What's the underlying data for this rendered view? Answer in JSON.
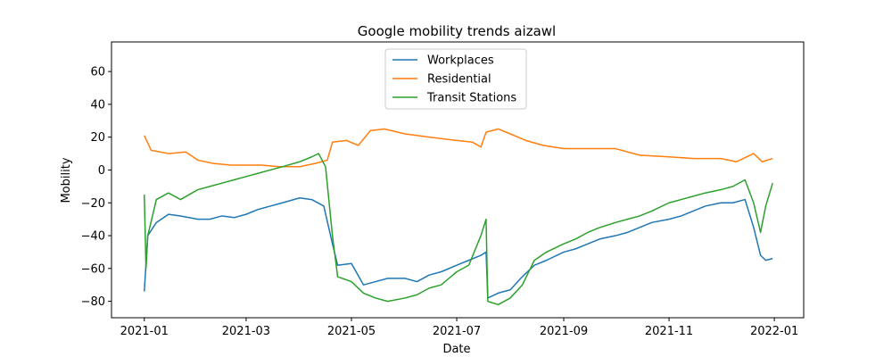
{
  "chart_data": {
    "type": "line",
    "title": "Google mobility trends aizawl",
    "xlabel": "Date",
    "ylabel": "Mobility",
    "xlim": [
      "2020-12-13",
      "2022-01-18"
    ],
    "ylim": [
      -90,
      78
    ],
    "x_ticks": [
      "2021-01-01",
      "2021-03-01",
      "2021-05-01",
      "2021-07-01",
      "2021-09-01",
      "2021-11-01",
      "2022-01-01"
    ],
    "x_tick_labels": [
      "2021-01",
      "2021-03",
      "2021-05",
      "2021-07",
      "2021-09",
      "2021-11",
      "2022-01"
    ],
    "y_ticks": [
      -80,
      -60,
      -40,
      -20,
      0,
      20,
      40,
      60
    ],
    "y_tick_labels": [
      "−80",
      "−60",
      "−40",
      "−20",
      "0",
      "20",
      "40",
      "60"
    ],
    "grid": false,
    "legend_position": "top-center",
    "series": [
      {
        "name": "Workplaces",
        "color": "#1f77b4",
        "points": [
          [
            "2021-01-01",
            -74
          ],
          [
            "2021-01-03",
            -40
          ],
          [
            "2021-01-08",
            -32
          ],
          [
            "2021-01-15",
            -27
          ],
          [
            "2021-01-22",
            -28
          ],
          [
            "2021-02-01",
            -30
          ],
          [
            "2021-02-08",
            -30
          ],
          [
            "2021-02-15",
            -28
          ],
          [
            "2021-02-22",
            -29
          ],
          [
            "2021-03-01",
            -27
          ],
          [
            "2021-03-08",
            -24
          ],
          [
            "2021-03-15",
            -22
          ],
          [
            "2021-03-22",
            -20
          ],
          [
            "2021-04-01",
            -17
          ],
          [
            "2021-04-08",
            -18
          ],
          [
            "2021-04-15",
            -22
          ],
          [
            "2021-04-20",
            -45
          ],
          [
            "2021-04-23",
            -58
          ],
          [
            "2021-05-01",
            -57
          ],
          [
            "2021-05-08",
            -70
          ],
          [
            "2021-05-15",
            -68
          ],
          [
            "2021-05-22",
            -66
          ],
          [
            "2021-06-01",
            -66
          ],
          [
            "2021-06-08",
            -68
          ],
          [
            "2021-06-15",
            -64
          ],
          [
            "2021-06-22",
            -62
          ],
          [
            "2021-07-01",
            -58
          ],
          [
            "2021-07-08",
            -55
          ],
          [
            "2021-07-15",
            -52
          ],
          [
            "2021-07-18",
            -50
          ],
          [
            "2021-07-19",
            -78
          ],
          [
            "2021-07-25",
            -75
          ],
          [
            "2021-08-01",
            -73
          ],
          [
            "2021-08-08",
            -65
          ],
          [
            "2021-08-15",
            -58
          ],
          [
            "2021-08-22",
            -55
          ],
          [
            "2021-09-01",
            -50
          ],
          [
            "2021-09-08",
            -48
          ],
          [
            "2021-09-15",
            -45
          ],
          [
            "2021-09-22",
            -42
          ],
          [
            "2021-10-01",
            -40
          ],
          [
            "2021-10-08",
            -38
          ],
          [
            "2021-10-15",
            -35
          ],
          [
            "2021-10-22",
            -32
          ],
          [
            "2021-11-01",
            -30
          ],
          [
            "2021-11-08",
            -28
          ],
          [
            "2021-11-15",
            -25
          ],
          [
            "2021-11-22",
            -22
          ],
          [
            "2021-12-01",
            -20
          ],
          [
            "2021-12-08",
            -20
          ],
          [
            "2021-12-15",
            -18
          ],
          [
            "2021-12-20",
            -35
          ],
          [
            "2021-12-24",
            -52
          ],
          [
            "2021-12-27",
            -55
          ],
          [
            "2021-12-31",
            -54
          ]
        ]
      },
      {
        "name": "Residential",
        "color": "#ff7f0e",
        "points": [
          [
            "2021-01-01",
            21
          ],
          [
            "2021-01-05",
            12
          ],
          [
            "2021-01-15",
            10
          ],
          [
            "2021-01-25",
            11
          ],
          [
            "2021-02-01",
            6
          ],
          [
            "2021-02-10",
            4
          ],
          [
            "2021-02-20",
            3
          ],
          [
            "2021-03-01",
            3
          ],
          [
            "2021-03-10",
            3
          ],
          [
            "2021-03-20",
            2
          ],
          [
            "2021-04-01",
            2
          ],
          [
            "2021-04-10",
            4
          ],
          [
            "2021-04-17",
            6
          ],
          [
            "2021-04-20",
            17
          ],
          [
            "2021-04-28",
            18
          ],
          [
            "2021-05-05",
            15
          ],
          [
            "2021-05-12",
            24
          ],
          [
            "2021-05-20",
            25
          ],
          [
            "2021-06-01",
            22
          ],
          [
            "2021-06-15",
            20
          ],
          [
            "2021-07-01",
            18
          ],
          [
            "2021-07-10",
            17
          ],
          [
            "2021-07-15",
            14
          ],
          [
            "2021-07-18",
            23
          ],
          [
            "2021-07-25",
            25
          ],
          [
            "2021-08-01",
            22
          ],
          [
            "2021-08-10",
            18
          ],
          [
            "2021-08-20",
            15
          ],
          [
            "2021-09-01",
            13
          ],
          [
            "2021-09-15",
            13
          ],
          [
            "2021-10-01",
            13
          ],
          [
            "2021-10-15",
            9
          ],
          [
            "2021-11-01",
            8
          ],
          [
            "2021-11-15",
            7
          ],
          [
            "2021-12-01",
            7
          ],
          [
            "2021-12-10",
            5
          ],
          [
            "2021-12-20",
            10
          ],
          [
            "2021-12-25",
            5
          ],
          [
            "2021-12-31",
            7
          ]
        ]
      },
      {
        "name": "Transit Stations",
        "color": "#2ca02c",
        "points": [
          [
            "2021-01-01",
            -15
          ],
          [
            "2021-01-02",
            -60
          ],
          [
            "2021-01-03",
            -40
          ],
          [
            "2021-01-08",
            -18
          ],
          [
            "2021-01-15",
            -14
          ],
          [
            "2021-01-22",
            -18
          ],
          [
            "2021-02-01",
            -12
          ],
          [
            "2021-02-08",
            -10
          ],
          [
            "2021-02-15",
            -8
          ],
          [
            "2021-02-22",
            -6
          ],
          [
            "2021-03-01",
            -4
          ],
          [
            "2021-03-08",
            -2
          ],
          [
            "2021-03-15",
            0
          ],
          [
            "2021-03-22",
            2
          ],
          [
            "2021-04-01",
            5
          ],
          [
            "2021-04-08",
            8
          ],
          [
            "2021-04-12",
            10
          ],
          [
            "2021-04-16",
            2
          ],
          [
            "2021-04-20",
            -40
          ],
          [
            "2021-04-23",
            -65
          ],
          [
            "2021-05-01",
            -68
          ],
          [
            "2021-05-08",
            -75
          ],
          [
            "2021-05-15",
            -78
          ],
          [
            "2021-05-22",
            -80
          ],
          [
            "2021-06-01",
            -78
          ],
          [
            "2021-06-08",
            -76
          ],
          [
            "2021-06-15",
            -72
          ],
          [
            "2021-06-22",
            -70
          ],
          [
            "2021-07-01",
            -62
          ],
          [
            "2021-07-08",
            -58
          ],
          [
            "2021-07-15",
            -40
          ],
          [
            "2021-07-18",
            -30
          ],
          [
            "2021-07-19",
            -80
          ],
          [
            "2021-07-25",
            -82
          ],
          [
            "2021-08-01",
            -78
          ],
          [
            "2021-08-08",
            -70
          ],
          [
            "2021-08-15",
            -55
          ],
          [
            "2021-08-22",
            -50
          ],
          [
            "2021-09-01",
            -45
          ],
          [
            "2021-09-08",
            -42
          ],
          [
            "2021-09-15",
            -38
          ],
          [
            "2021-09-22",
            -35
          ],
          [
            "2021-10-01",
            -32
          ],
          [
            "2021-10-08",
            -30
          ],
          [
            "2021-10-15",
            -28
          ],
          [
            "2021-10-22",
            -25
          ],
          [
            "2021-11-01",
            -20
          ],
          [
            "2021-11-08",
            -18
          ],
          [
            "2021-11-15",
            -16
          ],
          [
            "2021-11-22",
            -14
          ],
          [
            "2021-12-01",
            -12
          ],
          [
            "2021-12-08",
            -10
          ],
          [
            "2021-12-15",
            -6
          ],
          [
            "2021-12-20",
            -20
          ],
          [
            "2021-12-24",
            -38
          ],
          [
            "2021-12-27",
            -22
          ],
          [
            "2021-12-31",
            -8
          ]
        ]
      }
    ]
  }
}
